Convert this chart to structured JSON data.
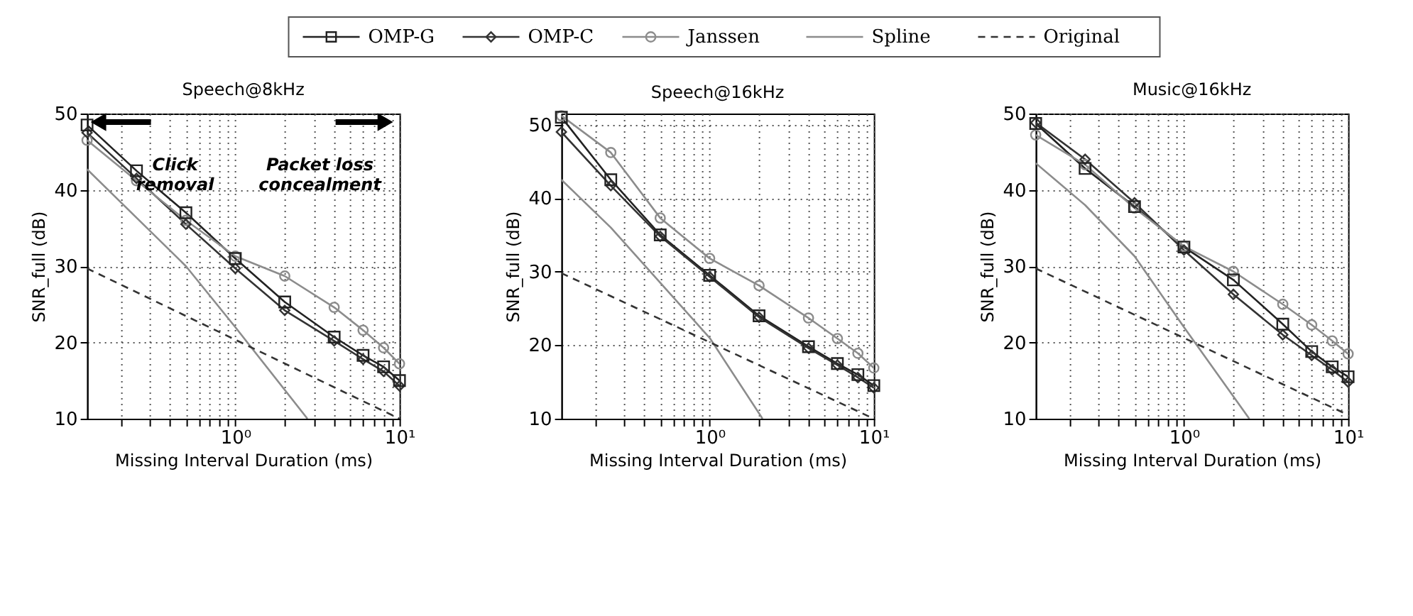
{
  "chart_data": [
    {
      "type": "line",
      "title": "Speech@8kHz",
      "xlabel": "Missing Interval Duration (ms)",
      "ylabel": "SNR_full (dB)",
      "legend": "top",
      "grid": true,
      "log": "x",
      "xlim": [
        0.125,
        10
      ],
      "xticks": [
        {
          "value": 0.2,
          "label": null
        },
        {
          "value": 0.3,
          "label": null
        },
        {
          "value": 0.4,
          "label": null
        },
        {
          "value": 0.5,
          "label": null
        },
        {
          "value": 0.6,
          "label": null
        },
        {
          "value": 0.7,
          "label": null
        },
        {
          "value": 0.8,
          "label": null
        },
        {
          "value": 0.9,
          "label": null
        },
        {
          "value": 1,
          "label": "10⁰"
        },
        {
          "value": 2,
          "label": null
        },
        {
          "value": 3,
          "label": null
        },
        {
          "value": 4,
          "label": null
        },
        {
          "value": 5,
          "label": null
        },
        {
          "value": 6,
          "label": null
        },
        {
          "value": 7,
          "label": null
        },
        {
          "value": 8,
          "label": null
        },
        {
          "value": 9,
          "label": null
        },
        {
          "value": 10,
          "label": "10¹"
        }
      ],
      "ylim": [
        10,
        50
      ],
      "yticks": [
        10,
        20,
        30,
        40,
        50
      ],
      "x": [
        0.125,
        0.25,
        0.5,
        1,
        2,
        4,
        6,
        8,
        10
      ],
      "annotations": [
        "Click\nremoval",
        "Packet loss\nconcealment"
      ],
      "series": [
        {
          "name": "OMP-G",
          "color": "#222222",
          "marker": "square",
          "line_style": "solid",
          "values": [
            48.5,
            42.5,
            37,
            31,
            25.3,
            20.7,
            18.3,
            16.8,
            15
          ]
        },
        {
          "name": "OMP-C",
          "color": "#333333",
          "marker": "diamond",
          "line_style": "solid",
          "values": [
            47.5,
            41.5,
            35.5,
            29.7,
            24.2,
            20.2,
            17.8,
            16.2,
            14.3
          ]
        },
        {
          "name": "Janssen",
          "color": "#8c8c8c",
          "marker": "circle",
          "line_style": "solid",
          "values": [
            46.5,
            41.2,
            36,
            31.3,
            28.7,
            24.6,
            21.6,
            19.3,
            17.2
          ]
        },
        {
          "name": "Spline",
          "color": "#8c8c8c",
          "marker": "none",
          "line_style": "solid",
          "x": [
            0.125,
            0.5,
            1,
            2.75
          ],
          "values": [
            42.7,
            30,
            22,
            10
          ]
        },
        {
          "name": "Original",
          "color": "#333333",
          "marker": "none",
          "line_style": "dashed",
          "x": [
            0.125,
            10
          ],
          "values": [
            29.7,
            10
          ]
        }
      ]
    },
    {
      "type": "line",
      "title": "Speech@16kHz",
      "xlabel": "Missing Interval Duration (ms)",
      "ylabel": "SNR_full (dB)",
      "grid": true,
      "log": "x",
      "xlim": [
        0.125,
        10
      ],
      "xticks": [
        {
          "value": 0.2,
          "label": null
        },
        {
          "value": 0.3,
          "label": null
        },
        {
          "value": 0.4,
          "label": null
        },
        {
          "value": 0.5,
          "label": null
        },
        {
          "value": 0.6,
          "label": null
        },
        {
          "value": 0.7,
          "label": null
        },
        {
          "value": 0.8,
          "label": null
        },
        {
          "value": 0.9,
          "label": null
        },
        {
          "value": 1,
          "label": "10⁰"
        },
        {
          "value": 2,
          "label": null
        },
        {
          "value": 3,
          "label": null
        },
        {
          "value": 4,
          "label": null
        },
        {
          "value": 5,
          "label": null
        },
        {
          "value": 6,
          "label": null
        },
        {
          "value": 7,
          "label": null
        },
        {
          "value": 8,
          "label": null
        },
        {
          "value": 9,
          "label": null
        },
        {
          "value": 10,
          "label": "10¹"
        }
      ],
      "ylim": [
        10,
        51.5
      ],
      "yticks": [
        10,
        20,
        30,
        40,
        50
      ],
      "x": [
        0.125,
        0.25,
        0.5,
        1,
        2,
        4,
        6,
        8,
        10
      ],
      "series": [
        {
          "color": "#222222",
          "marker": "square",
          "line_style": "solid",
          "values": [
            51,
            42.5,
            35,
            29.5,
            24,
            19.8,
            17.5,
            16,
            14.5
          ]
        },
        {
          "color": "#333333",
          "marker": "diamond",
          "line_style": "solid",
          "values": [
            49,
            41.7,
            34.8,
            29.3,
            23.8,
            19.6,
            17.3,
            15.6,
            14.2
          ]
        },
        {
          "color": "#8c8c8c",
          "marker": "circle",
          "line_style": "solid",
          "values": [
            51.2,
            46.2,
            37.3,
            31.8,
            28.1,
            23.7,
            20.9,
            18.9,
            16.9
          ]
        },
        {
          "color": "#8c8c8c",
          "marker": "none",
          "line_style": "solid",
          "x": [
            0.125,
            0.25,
            1,
            2.1
          ],
          "values": [
            42.5,
            36,
            21,
            10
          ]
        },
        {
          "color": "#333333",
          "marker": "none",
          "line_style": "dashed",
          "x": [
            0.125,
            10
          ],
          "values": [
            29.8,
            10
          ]
        }
      ]
    },
    {
      "type": "line",
      "title": "Music@16kHz",
      "xlabel": "Missing Interval Duration (ms)",
      "ylabel": "SNR_full (dB)",
      "grid": true,
      "log": "x",
      "xlim": [
        0.125,
        10
      ],
      "xticks": [
        {
          "value": 0.2,
          "label": null
        },
        {
          "value": 0.3,
          "label": null
        },
        {
          "value": 0.4,
          "label": null
        },
        {
          "value": 0.5,
          "label": null
        },
        {
          "value": 0.6,
          "label": null
        },
        {
          "value": 0.7,
          "label": null
        },
        {
          "value": 0.8,
          "label": null
        },
        {
          "value": 0.9,
          "label": null
        },
        {
          "value": 1,
          "label": "10⁰"
        },
        {
          "value": 2,
          "label": null
        },
        {
          "value": 3,
          "label": null
        },
        {
          "value": 4,
          "label": null
        },
        {
          "value": 5,
          "label": null
        },
        {
          "value": 6,
          "label": null
        },
        {
          "value": 7,
          "label": null
        },
        {
          "value": 8,
          "label": null
        },
        {
          "value": 9,
          "label": null
        },
        {
          "value": 10,
          "label": "10¹"
        }
      ],
      "ylim": [
        10,
        50
      ],
      "yticks": [
        10,
        20,
        30,
        40,
        50
      ],
      "x": [
        0.125,
        0.25,
        0.5,
        1,
        2,
        4,
        6,
        8,
        10
      ],
      "series": [
        {
          "color": "#222222",
          "marker": "square",
          "line_style": "solid",
          "values": [
            48.7,
            42.8,
            37.8,
            32.5,
            28.2,
            22.4,
            18.8,
            16.8,
            15.5
          ]
        },
        {
          "color": "#333333",
          "marker": "diamond",
          "line_style": "solid",
          "values": [
            48.8,
            44,
            38.3,
            32.1,
            26.3,
            21,
            18.3,
            16.4,
            14.8
          ]
        },
        {
          "color": "#8c8c8c",
          "marker": "circle",
          "line_style": "solid",
          "values": [
            47.2,
            43.3,
            37.6,
            32.6,
            29.3,
            25,
            22.3,
            20.2,
            18.5
          ]
        },
        {
          "color": "#8c8c8c",
          "marker": "none",
          "line_style": "solid",
          "x": [
            0.125,
            0.25,
            0.5,
            1,
            2.5
          ],
          "values": [
            43.5,
            38,
            31.3,
            22,
            10
          ]
        },
        {
          "color": "#333333",
          "marker": "none",
          "line_style": "dashed",
          "x": [
            0.125,
            10
          ],
          "values": [
            29.7,
            10.5
          ]
        }
      ]
    }
  ]
}
